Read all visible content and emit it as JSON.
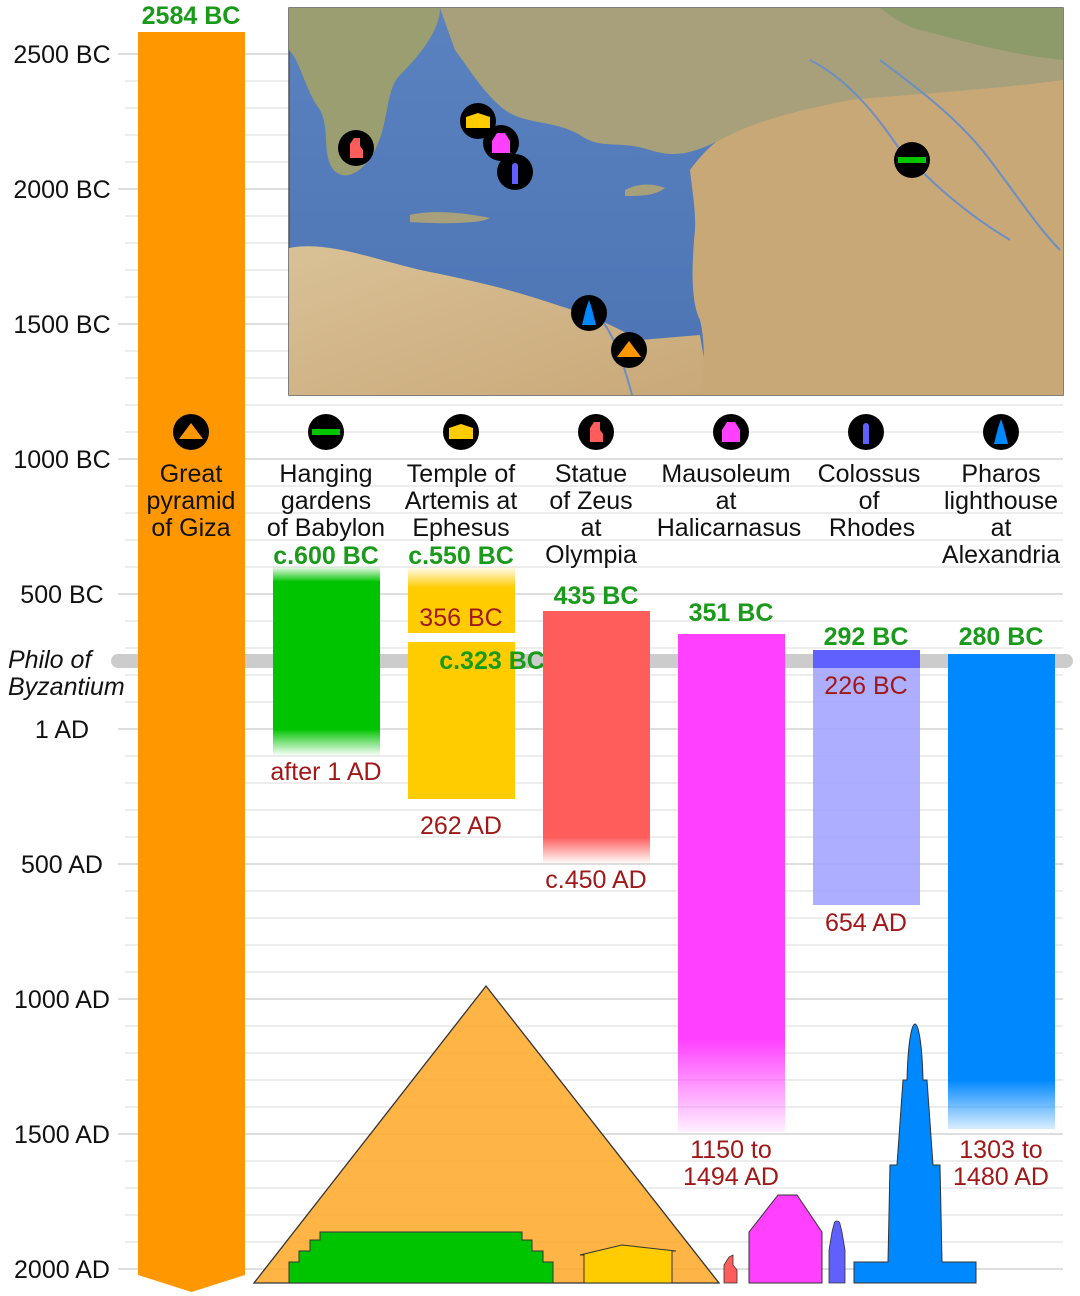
{
  "axis": {
    "labels": [
      "2500 BC",
      "2000 BC",
      "1500 BC",
      "1000 BC",
      "500 BC",
      "1 AD",
      "500 AD",
      "1000 AD",
      "1500 AD",
      "2000 AD"
    ],
    "philo_line1": "Philo of",
    "philo_line2": "Byzantium"
  },
  "colors": {
    "pyramid": "#ff9800",
    "gardens": "#00c400",
    "artemis": "#ffcc00",
    "zeus": "#ff5c5c",
    "mausoleum": "#ff40ff",
    "colossus": "#a0a0ff",
    "colossus_top": "#6060ff",
    "pharos": "#0088ff",
    "start_text": "#1a9a1a",
    "end_text": "#a01818",
    "philo_band": "#cccccc"
  },
  "wonders": [
    {
      "id": "pyramid",
      "name_lines": [
        "Great",
        "pyramid",
        "of Giza"
      ],
      "start": "2584 BC",
      "end": "",
      "icon": "pyramid-icon"
    },
    {
      "id": "gardens",
      "name_lines": [
        "Hanging",
        "gardens",
        "of Babylon"
      ],
      "start": "c.600 BC",
      "end": "after 1 AD",
      "icon": "hanging-gardens-icon"
    },
    {
      "id": "artemis",
      "name_lines": [
        "Temple of",
        "Artemis at",
        "Ephesus"
      ],
      "start": "c.550 BC",
      "destroyed": "356 BC",
      "rebuilt": "c.323 BC",
      "end": "262 AD",
      "icon": "temple-icon"
    },
    {
      "id": "zeus",
      "name_lines": [
        "Statue",
        "of Zeus",
        "at",
        "Olympia"
      ],
      "start": "435 BC",
      "end": "c.450 AD",
      "icon": "zeus-statue-icon"
    },
    {
      "id": "mausoleum",
      "name_lines": [
        "Mausoleum",
        "at",
        "Halicarnasus"
      ],
      "start": "351 BC",
      "end_lines": [
        "1150 to",
        "1494 AD"
      ],
      "icon": "mausoleum-icon"
    },
    {
      "id": "colossus",
      "name_lines": [
        "Colossus",
        "of",
        "Rhodes"
      ],
      "start": "292 BC",
      "destroyed": "226 BC",
      "end": "654 AD",
      "icon": "colossus-icon"
    },
    {
      "id": "pharos",
      "name_lines": [
        "Pharos",
        "lighthouse",
        "at",
        "Alexandria"
      ],
      "start": "280 BC",
      "end_lines": [
        "1303 to",
        "1480 AD"
      ],
      "icon": "lighthouse-icon"
    }
  ]
}
